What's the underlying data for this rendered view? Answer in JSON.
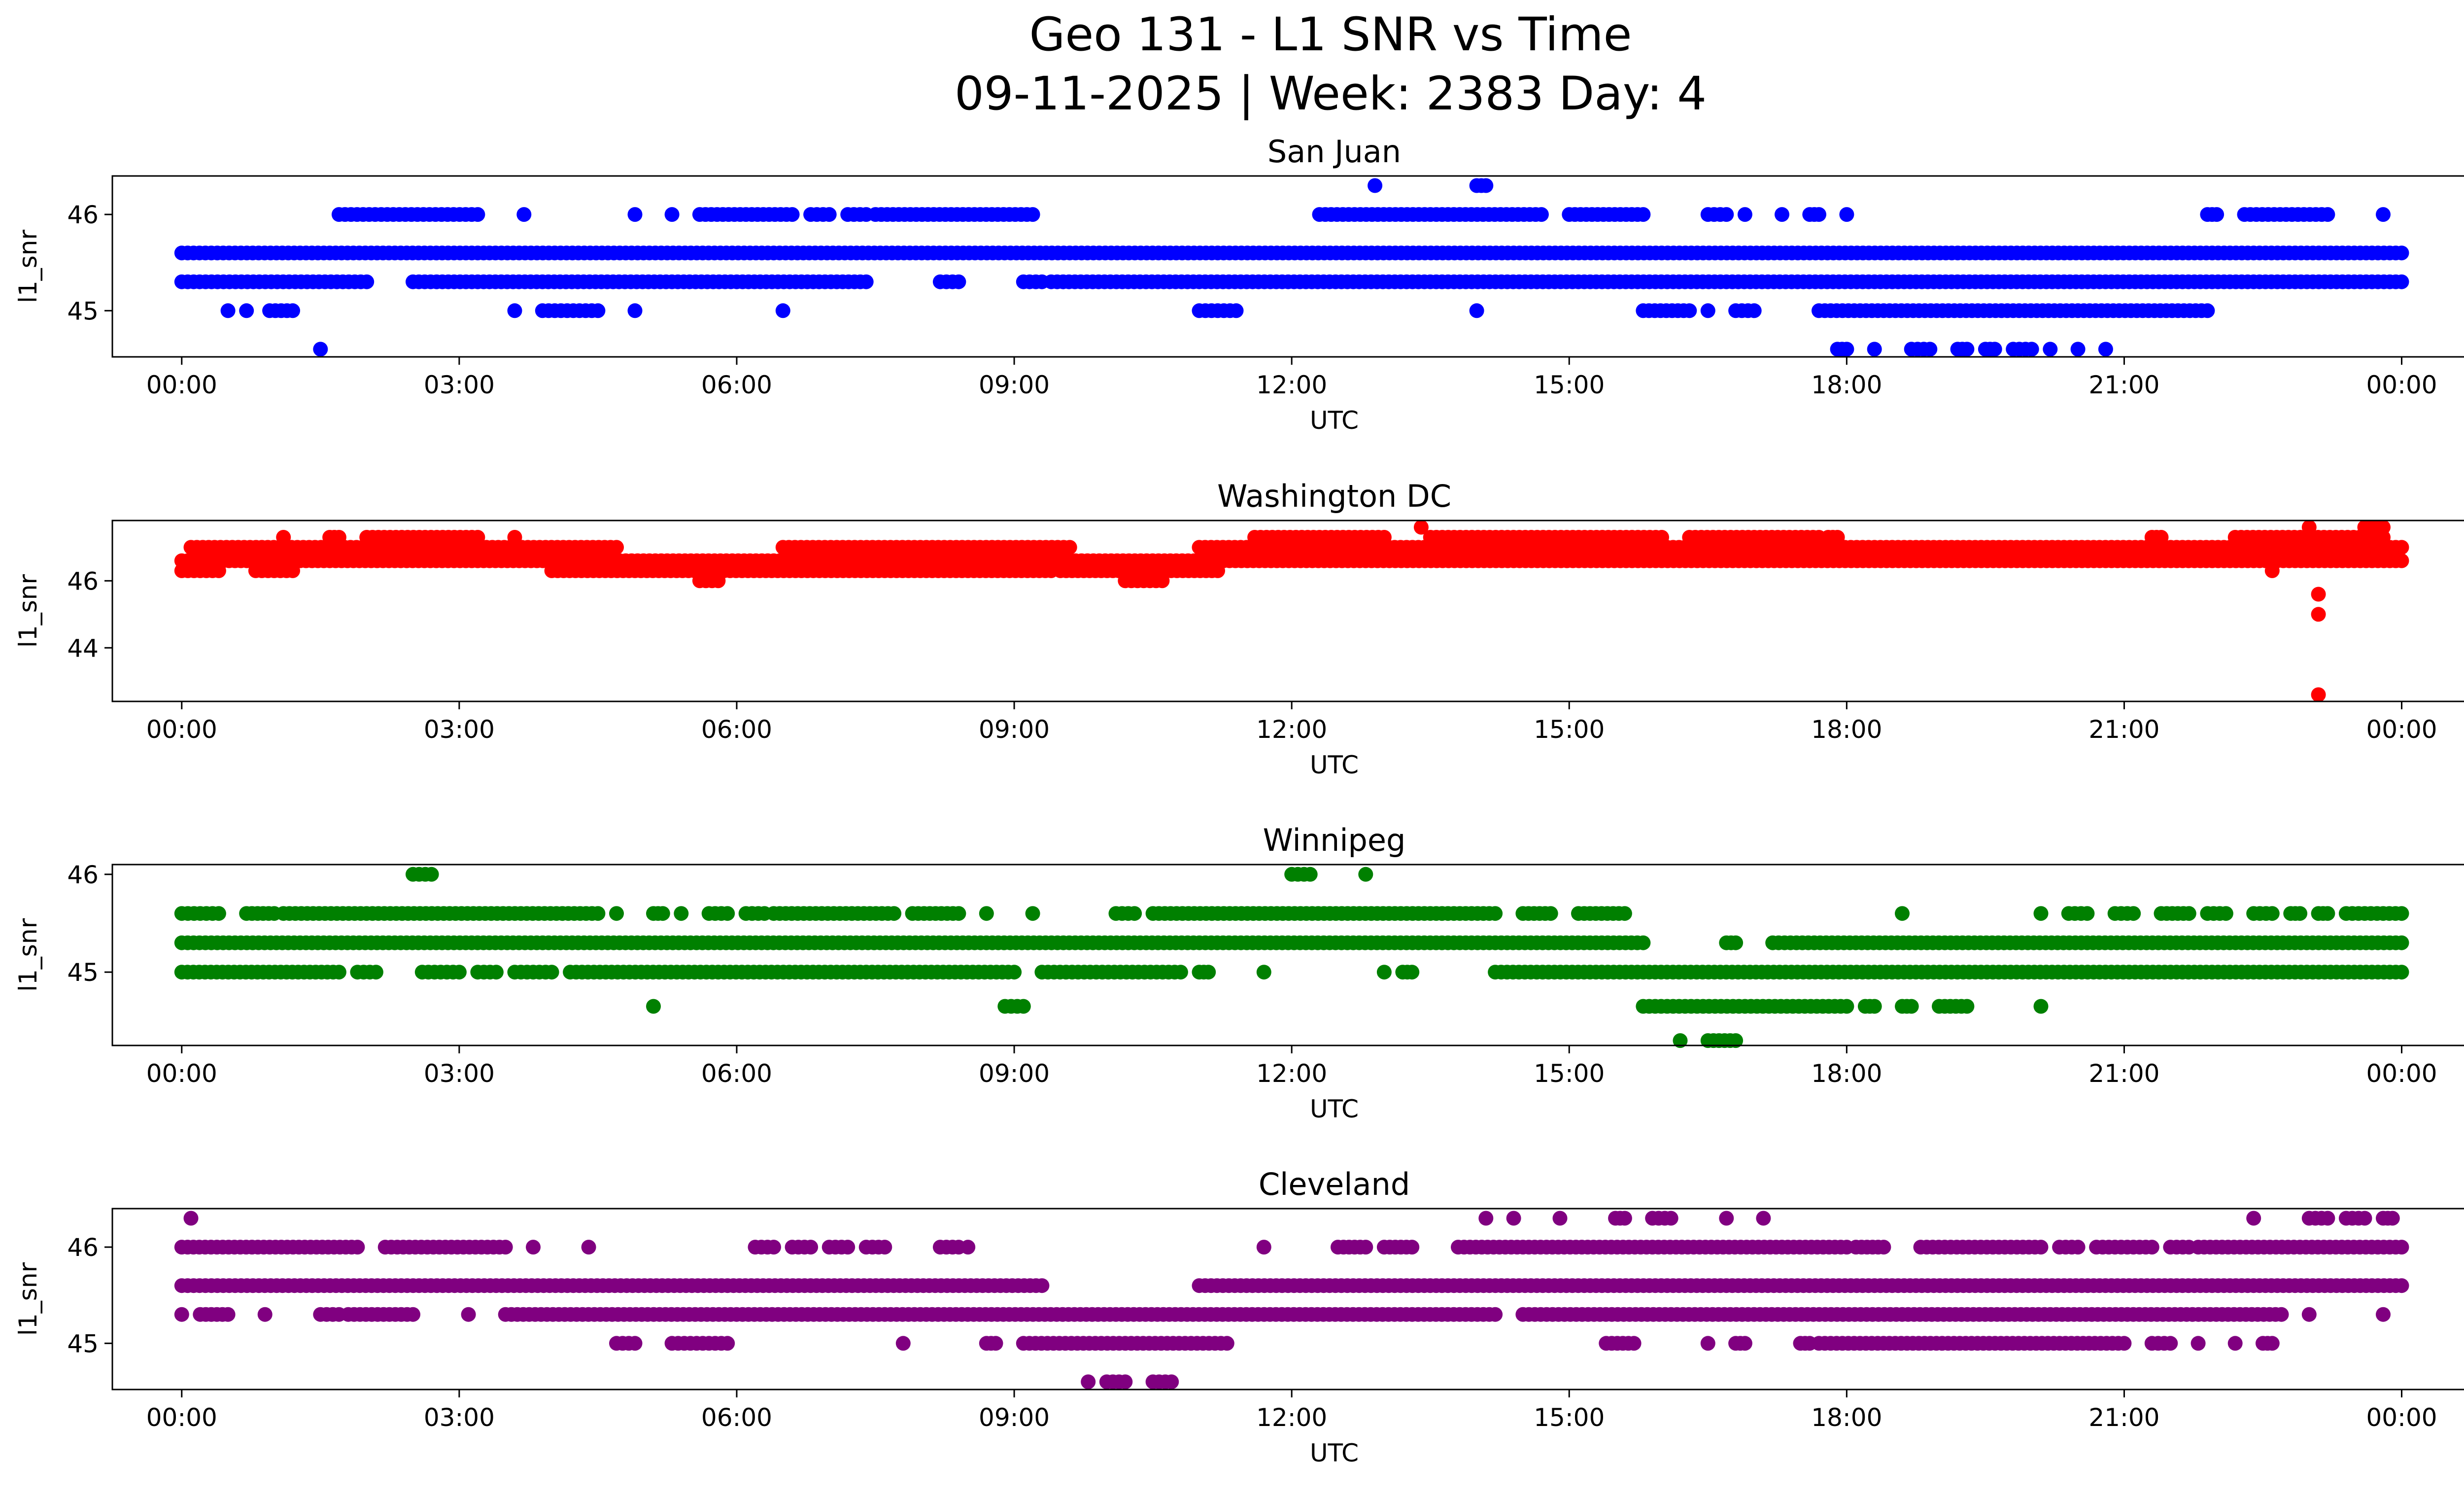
{
  "figure": {
    "title_line1": "Geo 131 - L1 SNR vs Time",
    "title_line2": "09-11-2025 | Week: 2383 Day: 4"
  },
  "chart_data": [
    {
      "type": "scatter",
      "title": "San Juan",
      "xlabel": "UTC",
      "ylabel": "l1_snr",
      "color": "#0000ff",
      "xlim": [
        -0.75,
        25.67
      ],
      "ylim": [
        44.52,
        46.4
      ],
      "yticks": [
        45,
        46
      ],
      "xtick_labels": [
        "00:00",
        "03:00",
        "06:00",
        "09:00",
        "12:00",
        "15:00",
        "18:00",
        "21:00",
        "00:00"
      ],
      "levels": [
        {
          "y": 45.6,
          "segments": [
            [
              0.0,
              24.0
            ]
          ]
        },
        {
          "y": 45.3,
          "segments": [
            [
              0.0,
              2.0
            ],
            [
              2.5,
              7.4
            ],
            [
              8.2,
              8.4
            ],
            [
              9.1,
              9.3
            ],
            [
              9.4,
              24.0
            ]
          ]
        },
        {
          "y": 46.0,
          "segments": [
            [
              1.7,
              3.2
            ],
            [
              3.7,
              3.7
            ],
            [
              4.9,
              4.9
            ],
            [
              5.3,
              5.3
            ],
            [
              5.6,
              6.6
            ],
            [
              6.8,
              7.0
            ],
            [
              7.2,
              7.4
            ],
            [
              7.5,
              9.2
            ],
            [
              12.3,
              14.7
            ],
            [
              15.0,
              15.8
            ],
            [
              16.5,
              16.7
            ],
            [
              16.9,
              16.9
            ],
            [
              17.3,
              17.3
            ],
            [
              17.6,
              17.7
            ],
            [
              18.0,
              18.0
            ],
            [
              21.9,
              22.0
            ],
            [
              22.3,
              23.2
            ],
            [
              23.8,
              23.8
            ]
          ]
        },
        {
          "y": 45.0,
          "segments": [
            [
              0.5,
              0.5
            ],
            [
              0.7,
              0.7
            ],
            [
              0.95,
              1.2
            ],
            [
              3.6,
              3.6
            ],
            [
              3.9,
              4.5
            ],
            [
              4.9,
              4.9
            ],
            [
              6.5,
              6.5
            ],
            [
              11.0,
              11.4
            ],
            [
              14.0,
              14.0
            ],
            [
              15.8,
              16.3
            ],
            [
              16.5,
              16.5
            ],
            [
              16.8,
              17.0
            ],
            [
              17.7,
              21.9
            ]
          ]
        },
        {
          "y": 44.6,
          "segments": [
            [
              1.5,
              1.5
            ],
            [
              17.9,
              18.0
            ],
            [
              18.3,
              18.3
            ],
            [
              18.7,
              18.9
            ],
            [
              19.2,
              19.3
            ],
            [
              19.5,
              19.6
            ],
            [
              19.8,
              20.0
            ],
            [
              20.2,
              20.2
            ],
            [
              20.5,
              20.5
            ],
            [
              20.8,
              20.8
            ]
          ]
        },
        {
          "y": 46.3,
          "segments": [
            [
              12.9,
              12.9
            ],
            [
              14.0,
              14.1
            ]
          ]
        }
      ]
    },
    {
      "type": "scatter",
      "title": "Washington DC",
      "xlabel": "UTC",
      "ylabel": "l1_snr",
      "color": "#ff0000",
      "xlim": [
        -0.75,
        25.67
      ],
      "ylim": [
        42.4,
        47.8
      ],
      "yticks": [
        44,
        46
      ],
      "xtick_labels": [
        "00:00",
        "03:00",
        "06:00",
        "09:00",
        "12:00",
        "15:00",
        "18:00",
        "21:00",
        "00:00"
      ],
      "levels": [
        {
          "y": 46.3,
          "segments": [
            [
              0.0,
              0.4
            ],
            [
              0.8,
              1.2
            ],
            [
              4.0,
              9.4
            ],
            [
              9.5,
              11.2
            ],
            [
              22.6,
              22.6
            ]
          ]
        },
        {
          "y": 46.6,
          "segments": [
            [
              0.0,
              24.0
            ]
          ]
        },
        {
          "y": 47.0,
          "segments": [
            [
              0.1,
              4.7
            ],
            [
              6.5,
              9.6
            ],
            [
              11.0,
              24.0
            ]
          ]
        },
        {
          "y": 47.3,
          "segments": [
            [
              1.1,
              1.1
            ],
            [
              1.6,
              1.7
            ],
            [
              2.0,
              3.2
            ],
            [
              3.6,
              3.6
            ],
            [
              11.6,
              13.0
            ],
            [
              13.5,
              16.0
            ],
            [
              16.3,
              17.7
            ],
            [
              17.8,
              17.9
            ],
            [
              21.3,
              21.4
            ],
            [
              22.2,
              23.8
            ]
          ]
        },
        {
          "y": 46.0,
          "segments": [
            [
              5.6,
              5.8
            ],
            [
              10.2,
              10.6
            ]
          ]
        },
        {
          "y": 47.6,
          "segments": [
            [
              13.4,
              13.4
            ],
            [
              23.0,
              23.0
            ],
            [
              23.6,
              23.8
            ]
          ]
        },
        {
          "y": 45.6,
          "segments": [
            [
              23.1,
              23.1
            ]
          ]
        },
        {
          "y": 45.0,
          "segments": [
            [
              23.1,
              23.1
            ]
          ]
        },
        {
          "y": 42.6,
          "segments": [
            [
              23.1,
              23.1
            ]
          ]
        }
      ]
    },
    {
      "type": "scatter",
      "title": "Winnipeg",
      "xlabel": "UTC",
      "ylabel": "l1_snr",
      "color": "#008000",
      "xlim": [
        -0.75,
        25.67
      ],
      "ylim": [
        44.25,
        46.1
      ],
      "yticks": [
        45,
        46
      ],
      "xtick_labels": [
        "00:00",
        "03:00",
        "06:00",
        "09:00",
        "12:00",
        "15:00",
        "18:00",
        "21:00",
        "00:00"
      ],
      "levels": [
        {
          "y": 45.3,
          "segments": [
            [
              0.0,
              15.8
            ],
            [
              16.7,
              16.8
            ],
            [
              17.2,
              24.0
            ]
          ]
        },
        {
          "y": 45.0,
          "segments": [
            [
              0.0,
              1.7
            ],
            [
              1.9,
              2.1
            ],
            [
              2.6,
              3.0
            ],
            [
              3.2,
              3.4
            ],
            [
              3.6,
              4.0
            ],
            [
              4.2,
              9.0
            ],
            [
              9.3,
              10.8
            ],
            [
              11.0,
              11.1
            ],
            [
              11.7,
              11.7
            ],
            [
              13.0,
              13.0
            ],
            [
              13.2,
              13.3
            ],
            [
              14.2,
              24.0
            ]
          ]
        },
        {
          "y": 45.6,
          "segments": [
            [
              0.0,
              0.4
            ],
            [
              0.7,
              1.0
            ],
            [
              1.1,
              4.5
            ],
            [
              4.7,
              4.7
            ],
            [
              5.1,
              5.2
            ],
            [
              5.4,
              5.4
            ],
            [
              5.7,
              5.9
            ],
            [
              6.1,
              6.3
            ],
            [
              6.4,
              7.7
            ],
            [
              7.9,
              8.4
            ],
            [
              8.7,
              8.7
            ],
            [
              9.2,
              9.2
            ],
            [
              10.1,
              10.3
            ],
            [
              10.5,
              14.2
            ],
            [
              14.5,
              14.8
            ],
            [
              15.1,
              15.6
            ],
            [
              18.6,
              18.6
            ],
            [
              20.1,
              20.1
            ],
            [
              20.4,
              20.6
            ],
            [
              20.9,
              21.1
            ],
            [
              21.4,
              21.7
            ],
            [
              21.9,
              22.1
            ],
            [
              22.4,
              22.6
            ],
            [
              22.8,
              22.9
            ],
            [
              23.1,
              23.2
            ],
            [
              23.4,
              24.0
            ]
          ]
        },
        {
          "y": 44.65,
          "segments": [
            [
              5.1,
              5.1
            ],
            [
              8.9,
              9.1
            ],
            [
              15.8,
              18.0
            ],
            [
              18.2,
              18.3
            ],
            [
              18.6,
              18.7
            ],
            [
              19.0,
              19.3
            ],
            [
              20.1,
              20.1
            ]
          ]
        },
        {
          "y": 44.3,
          "segments": [
            [
              16.2,
              16.2
            ],
            [
              16.5,
              16.8
            ]
          ]
        },
        {
          "y": 46.0,
          "segments": [
            [
              2.5,
              2.7
            ],
            [
              12.0,
              12.2
            ],
            [
              12.8,
              12.8
            ]
          ]
        }
      ]
    },
    {
      "type": "scatter",
      "title": "Cleveland",
      "xlabel": "UTC",
      "ylabel": "l1_snr",
      "color": "#800080",
      "xlim": [
        -0.75,
        25.67
      ],
      "ylim": [
        44.52,
        46.4
      ],
      "yticks": [
        45,
        46
      ],
      "xtick_labels": [
        "00:00",
        "03:00",
        "06:00",
        "09:00",
        "12:00",
        "15:00",
        "18:00",
        "21:00",
        "00:00"
      ],
      "levels": [
        {
          "y": 45.6,
          "segments": [
            [
              0.0,
              9.3
            ],
            [
              11.0,
              24.0
            ]
          ]
        },
        {
          "y": 45.3,
          "segments": [
            [
              0.0,
              0.0
            ],
            [
              0.2,
              0.5
            ],
            [
              0.9,
              0.9
            ],
            [
              1.5,
              1.7
            ],
            [
              1.8,
              2.5
            ],
            [
              3.1,
              3.1
            ],
            [
              3.5,
              14.2
            ],
            [
              14.5,
              22.7
            ],
            [
              23.0,
              23.0
            ],
            [
              23.8,
              23.8
            ]
          ]
        },
        {
          "y": 46.0,
          "segments": [
            [
              0.0,
              1.9
            ],
            [
              2.2,
              3.5
            ],
            [
              3.8,
              3.8
            ],
            [
              4.4,
              4.4
            ],
            [
              6.2,
              6.4
            ],
            [
              6.6,
              6.8
            ],
            [
              7.0,
              7.2
            ],
            [
              7.4,
              7.6
            ],
            [
              8.2,
              8.4
            ],
            [
              8.5,
              8.5
            ],
            [
              11.7,
              11.7
            ],
            [
              12.5,
              12.8
            ],
            [
              13.0,
              13.3
            ],
            [
              13.8,
              18.0
            ],
            [
              18.1,
              18.4
            ],
            [
              18.8,
              20.1
            ],
            [
              20.3,
              20.5
            ],
            [
              20.7,
              21.3
            ],
            [
              21.5,
              21.7
            ],
            [
              21.8,
              24.0
            ]
          ]
        },
        {
          "y": 45.0,
          "segments": [
            [
              4.7,
              4.9
            ],
            [
              5.3,
              5.9
            ],
            [
              7.8,
              7.8
            ],
            [
              8.7,
              8.8
            ],
            [
              9.1,
              11.3
            ],
            [
              15.4,
              15.7
            ],
            [
              16.5,
              16.5
            ],
            [
              16.8,
              16.9
            ],
            [
              17.5,
              17.6
            ],
            [
              17.7,
              21.0
            ],
            [
              21.3,
              21.5
            ],
            [
              21.8,
              21.8
            ],
            [
              22.2,
              22.2
            ],
            [
              22.5,
              22.6
            ]
          ]
        },
        {
          "y": 44.6,
          "segments": [
            [
              9.8,
              9.8
            ],
            [
              10.0,
              10.2
            ],
            [
              10.5,
              10.7
            ]
          ]
        },
        {
          "y": 46.3,
          "segments": [
            [
              0.1,
              0.1
            ],
            [
              14.1,
              14.1
            ],
            [
              14.4,
              14.4
            ],
            [
              14.9,
              14.9
            ],
            [
              15.5,
              15.6
            ],
            [
              15.9,
              16.1
            ],
            [
              16.7,
              16.7
            ],
            [
              17.1,
              17.1
            ],
            [
              22.4,
              22.4
            ],
            [
              23.0,
              23.2
            ],
            [
              23.4,
              23.6
            ],
            [
              23.8,
              23.9
            ]
          ]
        }
      ]
    }
  ]
}
